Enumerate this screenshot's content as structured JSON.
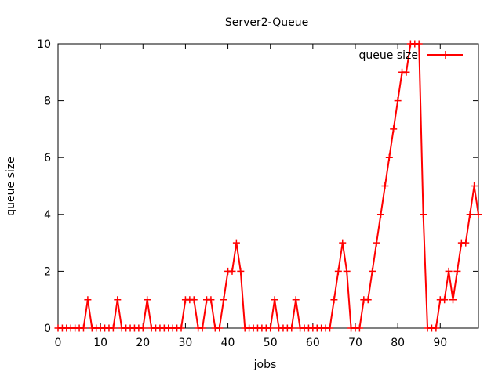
{
  "chart_data": {
    "type": "line",
    "title": "Server2-Queue",
    "xlabel": "jobs",
    "ylabel": "queue size",
    "xlim": [
      0,
      99
    ],
    "ylim": [
      0,
      10
    ],
    "xticks": [
      0,
      10,
      20,
      30,
      40,
      50,
      60,
      70,
      80,
      90
    ],
    "yticks": [
      0,
      2,
      4,
      6,
      8,
      10
    ],
    "grid": false,
    "legend_position": "top-right",
    "colors": {
      "series": "#ff0000",
      "axes": "#000000"
    },
    "series": [
      {
        "name": "queue size",
        "marker": "plus",
        "x": [
          0,
          1,
          2,
          3,
          4,
          5,
          6,
          7,
          8,
          9,
          10,
          11,
          12,
          13,
          14,
          15,
          16,
          17,
          18,
          19,
          20,
          21,
          22,
          23,
          24,
          25,
          26,
          27,
          28,
          29,
          30,
          31,
          32,
          33,
          34,
          35,
          36,
          37,
          38,
          39,
          40,
          41,
          42,
          43,
          44,
          45,
          46,
          47,
          48,
          49,
          50,
          51,
          52,
          53,
          54,
          55,
          56,
          57,
          58,
          59,
          60,
          61,
          62,
          63,
          64,
          65,
          66,
          67,
          68,
          69,
          70,
          71,
          72,
          73,
          74,
          75,
          76,
          77,
          78,
          79,
          80,
          81,
          82,
          83,
          84,
          85,
          86,
          87,
          88,
          89,
          90,
          91,
          92,
          93,
          94,
          95,
          96,
          97,
          98,
          99
        ],
        "y": [
          0,
          0,
          0,
          0,
          0,
          0,
          0,
          1,
          0,
          0,
          0,
          0,
          0,
          0,
          1,
          0,
          0,
          0,
          0,
          0,
          0,
          1,
          0,
          0,
          0,
          0,
          0,
          0,
          0,
          0,
          1,
          1,
          1,
          0,
          0,
          1,
          1,
          0,
          0,
          1,
          2,
          2,
          3,
          2,
          0,
          0,
          0,
          0,
          0,
          0,
          0,
          1,
          0,
          0,
          0,
          0,
          1,
          0,
          0,
          0,
          0,
          0,
          0,
          0,
          0,
          1,
          2,
          3,
          2,
          0,
          0,
          0,
          1,
          1,
          2,
          3,
          4,
          5,
          6,
          7,
          8,
          9,
          9,
          10,
          10,
          10,
          4,
          0,
          0,
          0,
          1,
          1,
          2,
          1,
          2,
          3,
          3,
          4,
          5,
          4
        ]
      }
    ]
  }
}
